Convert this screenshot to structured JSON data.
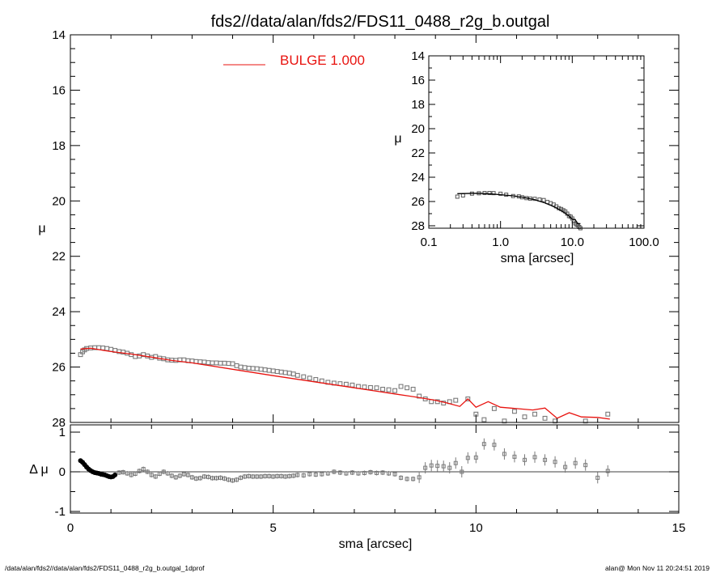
{
  "title": "fds2//data/alan/fds2/FDS11_0488_r2g_b.outgal",
  "footer": {
    "left": "/data/alan/fds2//data/alan/fds2/FDS11_0488_r2g_b.outgal_1dprof",
    "right": "alan@  Mon Nov 11 20:24:51 2019"
  },
  "colors": {
    "model": "#e8130f",
    "data": "#7a7a7a",
    "axes": "#000000",
    "residual_dark": "#000000"
  },
  "chart_data": [
    {
      "id": "main",
      "type": "scatter",
      "ylabel": "μ",
      "xlim": [
        0,
        15
      ],
      "ylim": [
        28,
        14
      ],
      "y_inverted": true,
      "yticks": [
        "14",
        "16",
        "18",
        "20",
        "22",
        "24",
        "26",
        "28"
      ],
      "legend": {
        "label": "BULGE  1.000",
        "placement": "top-center"
      },
      "series": [
        {
          "role": "data",
          "x": [
            0.25,
            0.3,
            0.35,
            0.4,
            0.5,
            0.6,
            0.7,
            0.8,
            0.9,
            1.0,
            1.1,
            1.2,
            1.3,
            1.4,
            1.5,
            1.6,
            1.7,
            1.8,
            1.9,
            2.0,
            2.1,
            2.2,
            2.3,
            2.4,
            2.5,
            2.6,
            2.7,
            2.8,
            2.9,
            3.0,
            3.1,
            3.2,
            3.3,
            3.4,
            3.5,
            3.6,
            3.7,
            3.8,
            3.9,
            4.0,
            4.1,
            4.2,
            4.3,
            4.4,
            4.5,
            4.6,
            4.7,
            4.8,
            4.9,
            5.0,
            5.1,
            5.2,
            5.3,
            5.4,
            5.5,
            5.6,
            5.75,
            5.9,
            6.05,
            6.2,
            6.35,
            6.5,
            6.65,
            6.8,
            6.95,
            7.1,
            7.25,
            7.4,
            7.55,
            7.7,
            7.85,
            8.0,
            8.15,
            8.3,
            8.45,
            8.6,
            8.75,
            8.9,
            9.05,
            9.2,
            9.35,
            9.5,
            9.65,
            9.8,
            10.0,
            10.2,
            10.45,
            10.7,
            10.95,
            11.2,
            11.45,
            11.7,
            11.95,
            12.2,
            12.45,
            12.7,
            13.0,
            13.25
          ],
          "y": [
            25.55,
            25.45,
            25.38,
            25.33,
            25.31,
            25.3,
            25.3,
            25.31,
            25.33,
            25.36,
            25.4,
            25.44,
            25.46,
            25.5,
            25.55,
            25.62,
            25.6,
            25.55,
            25.6,
            25.65,
            25.62,
            25.68,
            25.7,
            25.74,
            25.75,
            25.76,
            25.74,
            25.74,
            25.77,
            25.78,
            25.8,
            25.81,
            25.82,
            25.84,
            25.85,
            25.85,
            25.86,
            25.86,
            25.87,
            25.88,
            25.95,
            26.0,
            26.02,
            26.04,
            26.05,
            26.06,
            26.08,
            26.1,
            26.12,
            26.14,
            26.16,
            26.18,
            26.2,
            26.22,
            26.25,
            26.3,
            26.35,
            26.4,
            26.45,
            26.5,
            26.55,
            26.58,
            26.6,
            26.62,
            26.65,
            26.7,
            26.72,
            26.74,
            26.75,
            26.8,
            26.82,
            26.85,
            26.7,
            26.75,
            26.8,
            27.05,
            27.15,
            27.25,
            27.25,
            27.3,
            27.25,
            27.2,
            28.4,
            27.15,
            27.7,
            27.9,
            27.5,
            27.95,
            27.6,
            27.8,
            27.7,
            27.85,
            27.95,
            28.2,
            28.4,
            27.95,
            28.6,
            27.7
          ]
        },
        {
          "role": "model",
          "x": [
            0.25,
            0.5,
            0.75,
            1.0,
            1.5,
            2.0,
            2.5,
            3.0,
            4.0,
            5.0,
            6.0,
            7.0,
            7.5,
            8.0,
            8.5,
            9.0,
            9.3,
            9.6,
            9.8,
            10.0,
            10.3,
            10.6,
            11.0,
            11.4,
            11.7,
            12.0,
            12.3,
            12.6,
            13.0,
            13.3
          ],
          "y": [
            25.35,
            25.32,
            25.38,
            25.44,
            25.53,
            25.64,
            25.76,
            25.85,
            26.08,
            26.31,
            26.53,
            26.75,
            26.86,
            26.97,
            27.08,
            27.2,
            27.3,
            27.42,
            27.15,
            27.45,
            27.25,
            27.45,
            27.5,
            27.55,
            27.48,
            27.85,
            27.65,
            27.8,
            27.82,
            27.88
          ]
        }
      ]
    },
    {
      "id": "residual",
      "type": "scatter",
      "xlabel": "sma [arcsec]",
      "ylabel": "Δ μ",
      "xlim": [
        0,
        15
      ],
      "ylim": [
        -1,
        1
      ],
      "xticks": [
        "0",
        "5",
        "10",
        "15"
      ],
      "yticks": [
        "1",
        "0",
        "-1"
      ],
      "zero_line": true,
      "series": [
        {
          "role": "residual",
          "x": [
            0.25,
            0.3,
            0.35,
            0.4,
            0.45,
            0.5,
            0.55,
            0.6,
            0.65,
            0.7,
            0.75,
            0.8,
            0.85,
            0.9,
            0.95,
            1.0,
            1.05,
            1.1,
            1.2,
            1.3,
            1.4,
            1.5,
            1.6,
            1.7,
            1.8,
            1.9,
            2.0,
            2.1,
            2.2,
            2.3,
            2.4,
            2.5,
            2.6,
            2.7,
            2.8,
            2.9,
            3.0,
            3.1,
            3.2,
            3.3,
            3.4,
            3.5,
            3.6,
            3.7,
            3.8,
            3.9,
            4.0,
            4.1,
            4.2,
            4.3,
            4.4,
            4.5,
            4.6,
            4.7,
            4.8,
            4.9,
            5.0,
            5.1,
            5.2,
            5.3,
            5.4,
            5.5,
            5.6,
            5.75,
            5.9,
            6.05,
            6.2,
            6.35,
            6.5,
            6.65,
            6.8,
            6.95,
            7.1,
            7.25,
            7.4,
            7.55,
            7.7,
            7.85,
            8.0,
            8.15,
            8.3,
            8.45,
            8.6,
            8.75,
            8.9,
            9.05,
            9.2,
            9.35,
            9.5,
            9.65,
            9.8,
            10.0,
            10.2,
            10.45,
            10.7,
            10.95,
            11.2,
            11.45,
            11.7,
            11.95,
            12.2,
            12.45,
            12.7,
            13.0,
            13.25
          ],
          "y": [
            0.28,
            0.24,
            0.18,
            0.12,
            0.07,
            0.03,
            0.0,
            -0.02,
            -0.03,
            -0.04,
            -0.06,
            -0.07,
            -0.08,
            -0.1,
            -0.12,
            -0.13,
            -0.12,
            -0.08,
            -0.02,
            -0.01,
            -0.04,
            -0.08,
            -0.05,
            0.02,
            0.07,
            0.0,
            -0.08,
            -0.12,
            -0.05,
            0.0,
            -0.04,
            -0.1,
            -0.14,
            -0.1,
            -0.06,
            -0.08,
            -0.14,
            -0.17,
            -0.16,
            -0.12,
            -0.13,
            -0.16,
            -0.16,
            -0.15,
            -0.17,
            -0.2,
            -0.22,
            -0.2,
            -0.15,
            -0.12,
            -0.11,
            -0.12,
            -0.12,
            -0.12,
            -0.11,
            -0.11,
            -0.12,
            -0.11,
            -0.11,
            -0.12,
            -0.11,
            -0.1,
            -0.08,
            -0.09,
            -0.06,
            -0.07,
            -0.06,
            -0.04,
            0.0,
            -0.02,
            -0.04,
            -0.02,
            -0.04,
            -0.03,
            -0.01,
            -0.03,
            -0.02,
            -0.04,
            -0.06,
            -0.15,
            -0.18,
            -0.18,
            -0.14,
            0.1,
            0.16,
            0.15,
            0.14,
            0.1,
            0.22,
            0.0,
            0.35,
            0.36,
            0.7,
            0.68,
            0.45,
            0.38,
            0.3,
            0.37,
            0.3,
            0.25,
            0.12,
            0.22,
            0.17,
            -0.15,
            0.02
          ]
        }
      ]
    },
    {
      "id": "inset",
      "type": "scatter",
      "xlabel": "sma [arcsec]",
      "ylabel": "μ",
      "xscale": "log",
      "xlim": [
        0.1,
        100
      ],
      "ylim": [
        28.2,
        14
      ],
      "y_inverted": true,
      "xticks": [
        "0.1",
        "1.0",
        "10.0",
        "100.0"
      ],
      "yticks": [
        "14",
        "16",
        "18",
        "20",
        "22",
        "24",
        "26",
        "28"
      ],
      "series": [
        {
          "role": "data",
          "x": [
            0.25,
            0.3,
            0.4,
            0.5,
            0.6,
            0.7,
            0.8,
            1.0,
            1.2,
            1.5,
            1.8,
            2.0,
            2.3,
            2.6,
            3.0,
            3.5,
            4.0,
            4.5,
            5.0,
            5.5,
            6.0,
            6.5,
            7.0,
            7.5,
            8.0,
            8.5,
            9.0,
            9.5,
            10.0,
            10.5,
            11.0,
            11.5,
            12.0,
            12.5,
            13.0
          ],
          "y": [
            25.6,
            25.5,
            25.35,
            25.32,
            25.3,
            25.3,
            25.31,
            25.36,
            25.44,
            25.55,
            25.58,
            25.65,
            25.72,
            25.76,
            25.78,
            25.84,
            25.88,
            26.04,
            26.14,
            26.25,
            26.4,
            26.55,
            26.62,
            26.72,
            26.82,
            27.0,
            27.2,
            27.25,
            27.4,
            27.6,
            27.8,
            27.9,
            27.95,
            28.1,
            28.2
          ]
        },
        {
          "role": "model",
          "x": [
            0.25,
            0.5,
            0.75,
            1.0,
            1.5,
            2.0,
            2.5,
            3.0,
            4.0,
            5.0,
            6.0,
            7.0,
            8.0,
            9.0,
            10.0,
            11.0,
            12.0,
            13.0
          ],
          "y": [
            25.35,
            25.32,
            25.38,
            25.44,
            25.53,
            25.64,
            25.76,
            25.85,
            26.08,
            26.31,
            26.53,
            26.75,
            26.97,
            27.2,
            27.45,
            27.5,
            27.85,
            27.82
          ]
        }
      ]
    }
  ]
}
